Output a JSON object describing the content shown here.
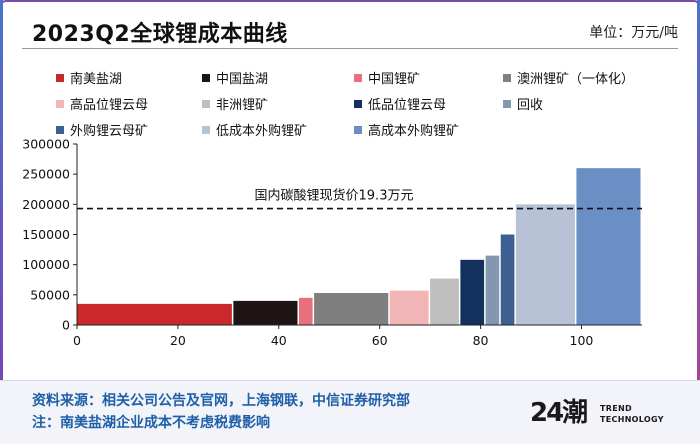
{
  "header": {
    "title": "2023Q2全球锂成本曲线",
    "unit": "单位：万元/吨"
  },
  "chart_data": {
    "type": "bar",
    "subtype": "cost-curve (variable-width bars)",
    "xlim": [
      0,
      112
    ],
    "ylim": [
      0,
      300000
    ],
    "xticks": [
      0,
      20,
      40,
      60,
      80,
      100
    ],
    "yticks": [
      0,
      50000,
      100000,
      150000,
      200000,
      250000,
      300000
    ],
    "xtick_labels": [
      "0",
      "20",
      "40",
      "60",
      "80",
      "100"
    ],
    "ytick_labels": [
      "0",
      "50000",
      "100000",
      "150000",
      "200000",
      "250000",
      "300000"
    ],
    "series": [
      {
        "name": "南美盐湖",
        "color": "#c9292b",
        "x_start": 0,
        "x_end": 31,
        "value": 35000
      },
      {
        "name": "中国盐湖",
        "color": "#1f1414",
        "x_start": 31,
        "x_end": 44,
        "value": 40000
      },
      {
        "name": "中国锂矿",
        "color": "#e8707c",
        "x_start": 44,
        "x_end": 47,
        "value": 45000
      },
      {
        "name": "澳洲锂矿（一体化）",
        "color": "#7f7f7f",
        "x_start": 47,
        "x_end": 62,
        "value": 53000
      },
      {
        "name": "高品位锂云母",
        "color": "#f2b5b5",
        "x_start": 62,
        "x_end": 70,
        "value": 57000
      },
      {
        "name": "非洲锂矿",
        "color": "#bfbfbf",
        "x_start": 70,
        "x_end": 76,
        "value": 77000
      },
      {
        "name": "低品位锂云母",
        "color": "#14305e",
        "x_start": 76,
        "x_end": 81,
        "value": 108000
      },
      {
        "name": "回收",
        "color": "#8497b0",
        "x_start": 81,
        "x_end": 84,
        "value": 115000
      },
      {
        "name": "外购锂云母矿",
        "color": "#3d5f91",
        "x_start": 84,
        "x_end": 87,
        "value": 150000
      },
      {
        "name": "低成本外购锂矿",
        "color": "#b7c2d6",
        "x_start": 87,
        "x_end": 99,
        "value": 200000
      },
      {
        "name": "高成本外购锂矿",
        "color": "#6a8fc4",
        "x_start": 99,
        "x_end": 112,
        "value": 260000
      }
    ],
    "reference_line": {
      "value": 193000,
      "label": "国内碳酸锂现货价19.3万元",
      "style": "dashed"
    },
    "legend_placement": "top"
  },
  "footer": {
    "source": "资料来源：相关公司公告及官网，上海钢联，中信证券研究部",
    "note": "注：南美盐湖企业成本不考虑税费影响"
  },
  "logo": {
    "text": "24潮",
    "line1": "TREND",
    "line2": "TECHNOLOGY"
  }
}
